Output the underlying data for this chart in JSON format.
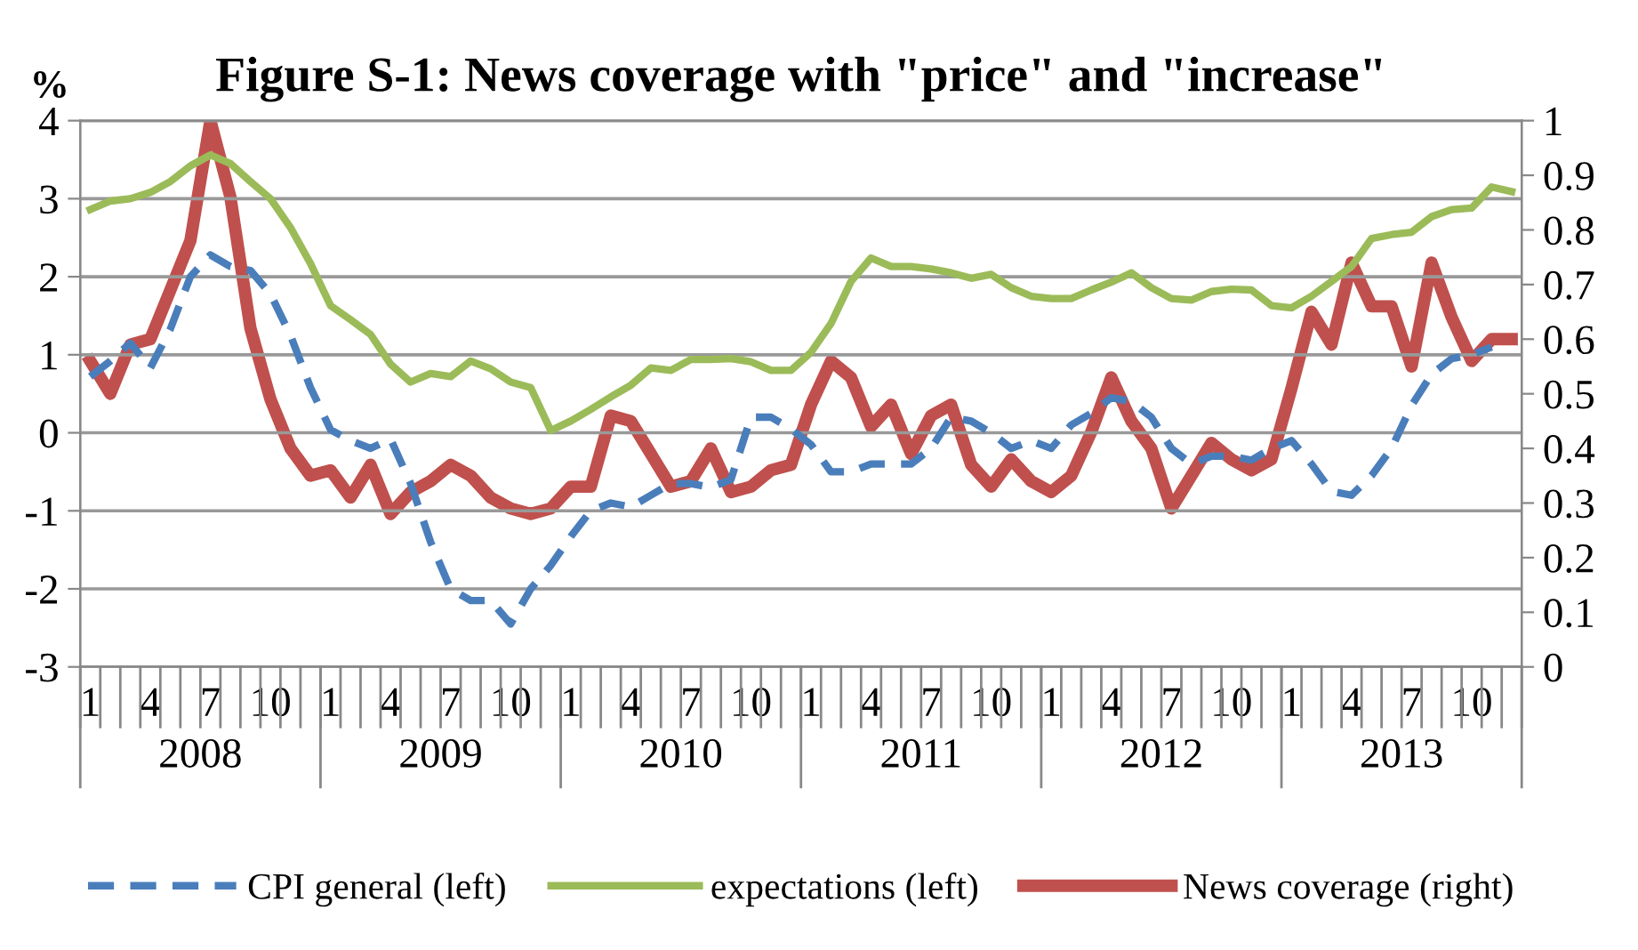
{
  "chart_data": {
    "type": "line",
    "title": "Figure S-1: News coverage with \"price\" and \"increase\"",
    "ylabel": "%",
    "categories": [
      "1",
      null,
      null,
      "4",
      null,
      null,
      "7",
      null,
      null,
      "10",
      null,
      null,
      "1",
      null,
      null,
      "4",
      null,
      null,
      "7",
      null,
      null,
      "10",
      null,
      null,
      "1",
      null,
      null,
      "4",
      null,
      null,
      "7",
      null,
      null,
      "10",
      null,
      null,
      "1",
      null,
      null,
      "4",
      null,
      null,
      "7",
      null,
      null,
      "10",
      null,
      null,
      "1",
      null,
      null,
      "4",
      null,
      null,
      "7",
      null,
      null,
      "10",
      null,
      null,
      "1",
      null,
      null,
      "4",
      null,
      null,
      "7",
      null,
      null,
      "10",
      null,
      null
    ],
    "annotations": [
      "2008",
      "2009",
      "2010",
      "2011",
      "2012",
      "2013"
    ],
    "series": [
      {
        "name": "CPI general (left)",
        "color": "#4a7ebb",
        "line_style": "dashed",
        "values": [
          0.72,
          0.92,
          1.15,
          0.83,
          1.33,
          2.0,
          2.28,
          2.13,
          2.08,
          1.78,
          1.25,
          0.58,
          0.04,
          -0.1,
          -0.2,
          -0.08,
          -0.65,
          -1.4,
          -2.0,
          -2.15,
          -2.15,
          -2.45,
          -2.0,
          -1.7,
          -1.33,
          -1.0,
          -0.9,
          -0.95,
          -0.8,
          -0.65,
          -0.65,
          -0.7,
          -0.6,
          0.2,
          0.2,
          0.05,
          -0.15,
          -0.5,
          -0.5,
          -0.4,
          -0.4,
          -0.4,
          -0.2,
          0.2,
          0.15,
          0.0,
          -0.2,
          -0.1,
          -0.2,
          0.1,
          0.25,
          0.45,
          0.4,
          0.2,
          -0.2,
          -0.4,
          -0.3,
          -0.3,
          -0.35,
          -0.2,
          -0.1,
          -0.4,
          -0.75,
          -0.8,
          -0.55,
          -0.2,
          0.35,
          0.75,
          0.95,
          1.0,
          1.1,
          null
        ]
      },
      {
        "name": "expectations (left)",
        "color": "#9bbb59",
        "line_style": "solid",
        "values": [
          2.86,
          2.97,
          3.0,
          3.08,
          3.22,
          3.42,
          3.56,
          3.45,
          3.22,
          3.0,
          2.63,
          2.17,
          1.63,
          1.45,
          1.26,
          0.88,
          0.65,
          0.76,
          0.72,
          0.92,
          0.82,
          0.65,
          0.58,
          0.03,
          0.15,
          0.3,
          0.46,
          0.61,
          0.83,
          0.8,
          0.94,
          0.94,
          0.95,
          0.91,
          0.8,
          0.8,
          1.03,
          1.4,
          1.94,
          2.24,
          2.13,
          2.13,
          2.1,
          2.05,
          1.98,
          2.03,
          1.86,
          1.75,
          1.72,
          1.72,
          1.83,
          1.93,
          2.05,
          1.86,
          1.72,
          1.7,
          1.81,
          1.84,
          1.83,
          1.63,
          1.6,
          1.75,
          1.94,
          2.13,
          2.49,
          2.54,
          2.57,
          2.77,
          2.86,
          2.88,
          3.15,
          3.09
        ]
      },
      {
        "name": "News coverage (right)",
        "color": "#c0504d",
        "line_style": "solid",
        "axis": "y2",
        "values": [
          0.56,
          0.5,
          0.59,
          0.6,
          0.69,
          0.78,
          1.0,
          0.86,
          0.62,
          0.49,
          0.4,
          0.35,
          0.36,
          0.31,
          0.37,
          0.28,
          0.32,
          0.34,
          0.37,
          0.35,
          0.31,
          0.29,
          0.28,
          0.29,
          0.33,
          0.33,
          0.46,
          0.45,
          0.39,
          0.33,
          0.34,
          0.4,
          0.32,
          0.33,
          0.36,
          0.37,
          0.48,
          0.56,
          0.53,
          0.44,
          0.48,
          0.39,
          0.46,
          0.48,
          0.37,
          0.33,
          0.38,
          0.34,
          0.32,
          0.35,
          0.43,
          0.53,
          0.45,
          0.4,
          0.29,
          0.35,
          0.41,
          0.38,
          0.36,
          0.38,
          0.51,
          0.65,
          0.59,
          0.74,
          0.66,
          0.66,
          0.55,
          0.74,
          0.64,
          0.56,
          0.6,
          0.6
        ]
      }
    ],
    "ylim": [
      -3,
      4
    ],
    "yticks": [
      -3,
      -2,
      -1,
      0,
      1,
      2,
      3,
      4
    ],
    "y2lim": [
      0,
      1
    ],
    "y2ticks": [
      0,
      0.1,
      0.2,
      0.3,
      0.4,
      0.5,
      0.6,
      0.7,
      0.8,
      0.9,
      1
    ],
    "grid": "y",
    "legend": "bottom",
    "marker": "none"
  }
}
